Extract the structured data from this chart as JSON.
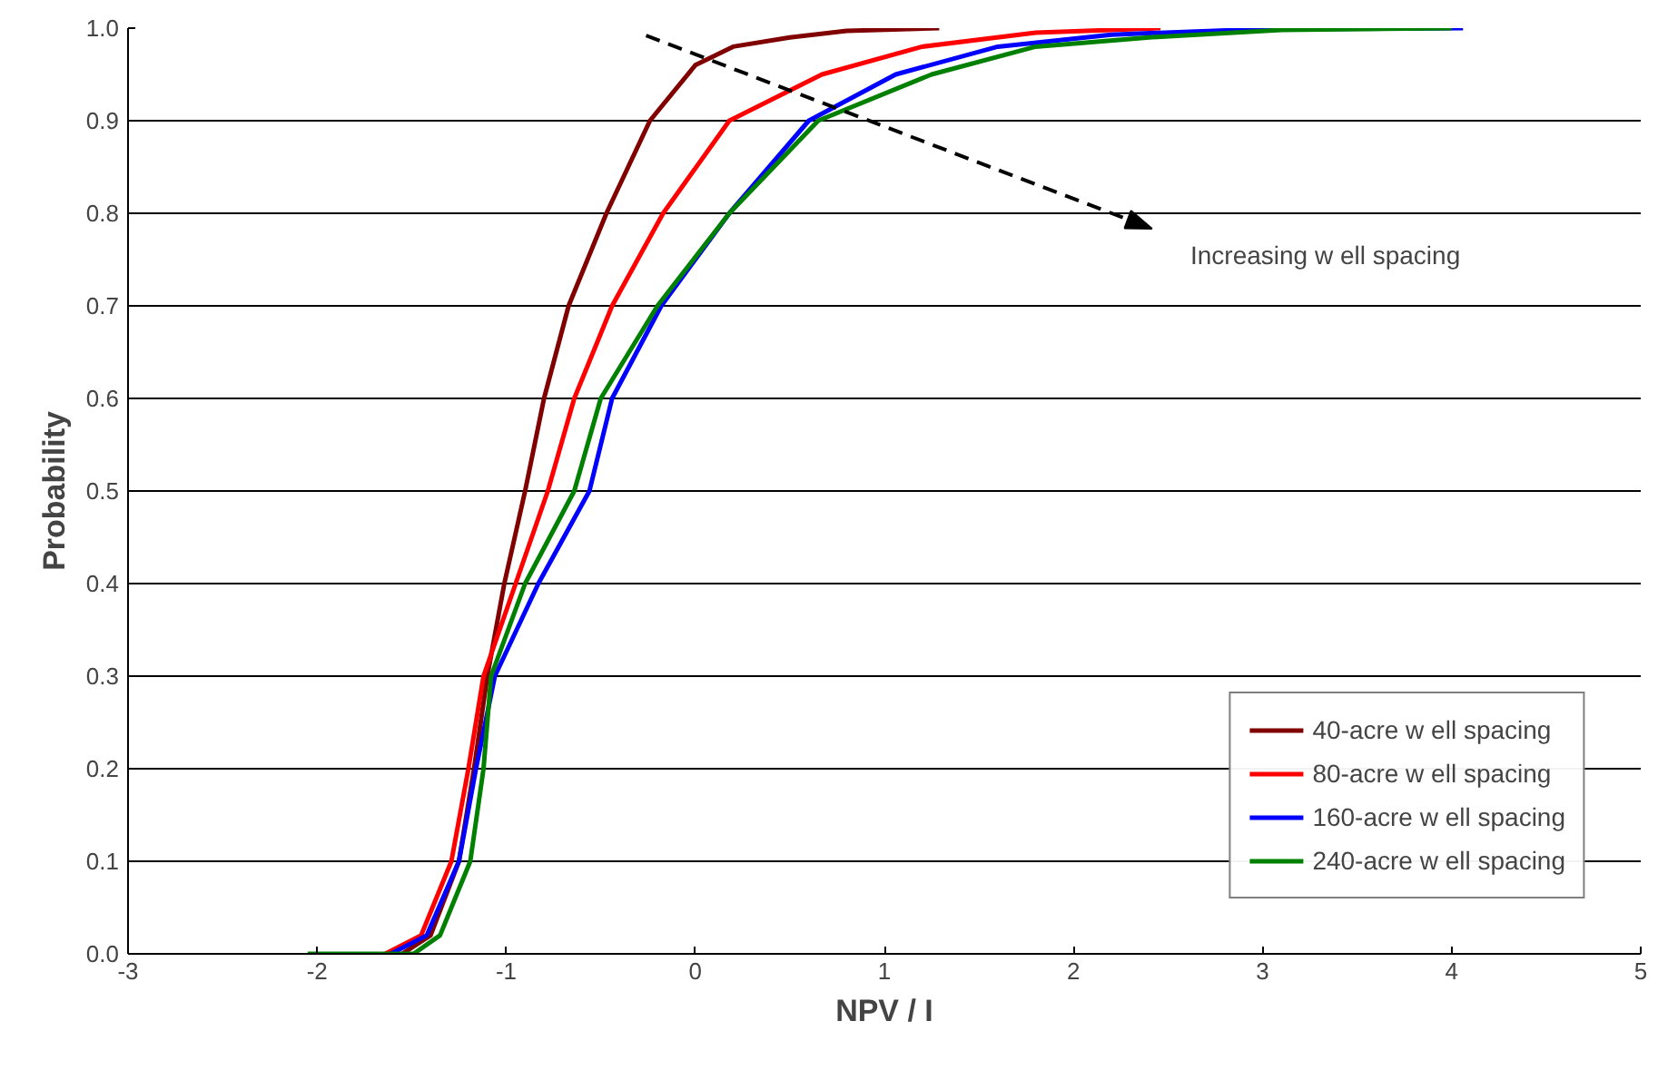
{
  "chart_data": {
    "type": "line",
    "xlabel": "NPV / I",
    "ylabel": "Probability",
    "xlim": [
      -3,
      5
    ],
    "ylim": [
      0,
      1
    ],
    "xticks": [
      -3,
      -2,
      -1,
      0,
      1,
      2,
      3,
      4,
      5
    ],
    "yticks": [
      {
        "value": 0,
        "label": "0.0"
      },
      {
        "value": 0.1,
        "label": "0.1"
      },
      {
        "value": 0.2,
        "label": "0.2"
      },
      {
        "value": 0.3,
        "label": "0.3"
      },
      {
        "value": 0.4,
        "label": "0.4"
      },
      {
        "value": 0.5,
        "label": "0.5"
      },
      {
        "value": 0.6,
        "label": "0.6"
      },
      {
        "value": 0.7,
        "label": "0.7"
      },
      {
        "value": 0.8,
        "label": "0.8"
      },
      {
        "value": 0.9,
        "label": "0.9"
      },
      {
        "value": 1,
        "label": "1.0"
      }
    ],
    "grid": "y",
    "legend": "bottom right",
    "marker": "none",
    "line_style": "solid",
    "series": [
      {
        "name": "40-acre w ell spacing",
        "color": "#800000",
        "x": [
          -1.55,
          -1.4,
          -1.25,
          -1.17,
          -1.1,
          -1.01,
          -0.9,
          -0.8,
          -0.67,
          -0.47,
          -0.24,
          0,
          0.2,
          0.5,
          0.8,
          1.29
        ],
        "values": [
          0,
          0.02,
          0.1,
          0.2,
          0.3,
          0.4,
          0.5,
          0.6,
          0.7,
          0.8,
          0.9,
          0.96,
          0.98,
          0.99,
          0.997,
          1
        ]
      },
      {
        "name": "80-acre w ell spacing",
        "color": "#ff0000",
        "x": [
          -1.64,
          -1.45,
          -1.29,
          -1.2,
          -1.12,
          -0.95,
          -0.78,
          -0.64,
          -0.44,
          -0.17,
          0.18,
          0.67,
          1.2,
          1.8,
          2.46
        ],
        "values": [
          0,
          0.02,
          0.1,
          0.2,
          0.3,
          0.4,
          0.5,
          0.6,
          0.7,
          0.8,
          0.9,
          0.95,
          0.98,
          0.995,
          1
        ]
      },
      {
        "name": "160-acre w ell spacing",
        "color": "#0000ff",
        "x": [
          -1.61,
          -1.42,
          -1.25,
          -1.16,
          -1.06,
          -0.83,
          -0.56,
          -0.44,
          -0.18,
          0.18,
          0.6,
          1.06,
          1.6,
          2.2,
          3.0,
          4.06
        ],
        "values": [
          0,
          0.02,
          0.1,
          0.2,
          0.3,
          0.4,
          0.5,
          0.6,
          0.7,
          0.8,
          0.9,
          0.95,
          0.98,
          0.993,
          0.999,
          1
        ]
      },
      {
        "name": "240-acre w ell spacing",
        "color": "#008000",
        "x": [
          -2.05,
          -1.49,
          -1.35,
          -1.19,
          -1.12,
          -1.08,
          -0.9,
          -0.64,
          -0.5,
          -0.2,
          0.18,
          0.65,
          1.25,
          1.8,
          2.4,
          3.1,
          4.0
        ],
        "values": [
          0,
          0,
          0.02,
          0.1,
          0.2,
          0.3,
          0.4,
          0.5,
          0.6,
          0.7,
          0.8,
          0.9,
          0.95,
          0.98,
          0.99,
          0.998,
          1
        ]
      },
      {
        "type": "line",
        "line_style": "dashed",
        "marker": "triangle",
        "color": "#000000",
        "x": [
          -0.26,
          2.33
        ],
        "values": [
          0.992,
          0.79
        ]
      }
    ],
    "annotations": [
      "Increasing w ell spacing"
    ]
  }
}
